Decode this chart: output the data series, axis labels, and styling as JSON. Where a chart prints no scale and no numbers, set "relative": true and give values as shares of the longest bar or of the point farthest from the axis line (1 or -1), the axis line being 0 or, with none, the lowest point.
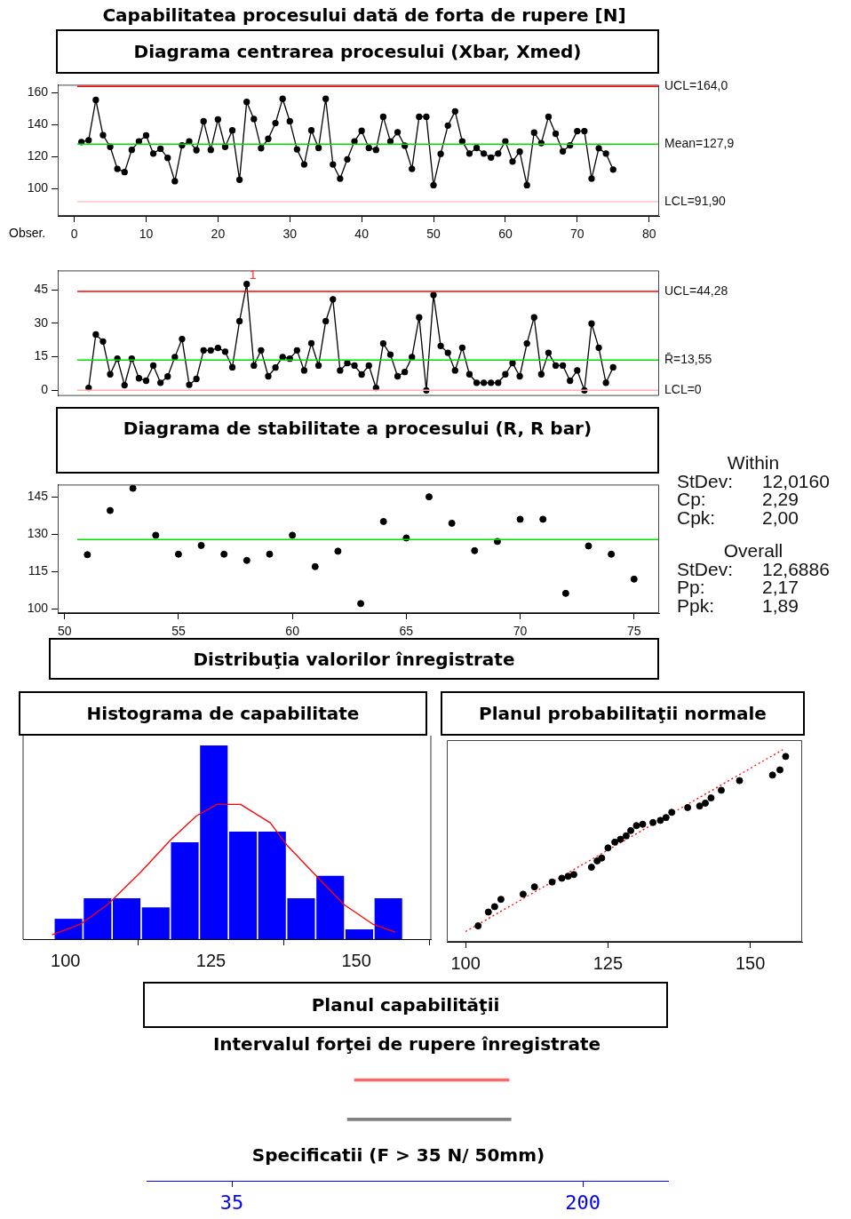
{
  "chart_data": [
    {
      "type": "line",
      "title": "Capabilitatea procesului dată de forta de rupere [N]",
      "subtitle": "Diagrama centrarea procesului (Xbar, Xmed)",
      "xlabel": "Obser.",
      "x": [
        1,
        2,
        3,
        4,
        5,
        6,
        7,
        8,
        9,
        10,
        11,
        12,
        13,
        14,
        15,
        16,
        17,
        18,
        19,
        20,
        21,
        22,
        23,
        24,
        25,
        26,
        27,
        28,
        29,
        30,
        31,
        32,
        33,
        34,
        35,
        36,
        37,
        38,
        39,
        40,
        41,
        42,
        43,
        44,
        45,
        46,
        47,
        48,
        49,
        50,
        51,
        52,
        53,
        54,
        55,
        56,
        57,
        58,
        59,
        60,
        61,
        62,
        63,
        64,
        65,
        66,
        67,
        68,
        69,
        70,
        71,
        72,
        73,
        74,
        75
      ],
      "values": [
        129.2,
        130.3,
        155.5,
        133.5,
        126.2,
        112.4,
        110.4,
        124.3,
        129.6,
        133.3,
        122,
        125,
        119.3,
        104.7,
        127.1,
        129.6,
        124.1,
        142.2,
        124.3,
        143.3,
        126.2,
        136.5,
        105.6,
        154.3,
        143.6,
        125.3,
        131.2,
        141,
        156.2,
        142.2,
        124.6,
        115.2,
        136.5,
        125.5,
        156.2,
        115.2,
        106.3,
        118.4,
        129.6,
        136.2,
        125.5,
        124.3,
        145,
        129.6,
        135.3,
        126.9,
        112.4,
        145,
        145,
        102.2,
        121.8,
        139.5,
        148.4,
        129.6,
        122,
        125.5,
        122,
        119.5,
        122,
        129.6,
        117,
        123.2,
        102.2,
        135.1,
        128.5,
        145,
        134.4,
        123.4,
        127.1,
        136,
        136,
        106.3,
        125.3,
        122,
        112
      ],
      "color": "#000000",
      "marker": "circle",
      "ref_lines": [
        {
          "axis": "y",
          "value": 164,
          "label": "UCL=164,0",
          "color": "#ff0000"
        },
        {
          "axis": "y",
          "value": 127.9,
          "label": "Mean=127,9",
          "color": "#00e000"
        },
        {
          "axis": "y",
          "value": 91.9,
          "label": "LCL=91,90",
          "color": "#ffc0c0"
        }
      ],
      "xlim": [
        -2.3,
        81.4
      ],
      "xticks": [
        0,
        10,
        20,
        30,
        40,
        50,
        60,
        70,
        80
      ],
      "ylim": [
        83,
        165
      ],
      "yticks": [
        100,
        120,
        140,
        160
      ],
      "grid": false,
      "legend": false
    },
    {
      "type": "line",
      "x": [
        2,
        3,
        4,
        5,
        6,
        7,
        8,
        9,
        10,
        11,
        12,
        13,
        14,
        15,
        16,
        17,
        18,
        19,
        20,
        21,
        22,
        23,
        24,
        25,
        26,
        27,
        28,
        29,
        30,
        31,
        32,
        33,
        34,
        35,
        36,
        37,
        38,
        39,
        40,
        41,
        42,
        43,
        44,
        45,
        46,
        47,
        48,
        49,
        50,
        51,
        52,
        53,
        54,
        55,
        56,
        57,
        58,
        59,
        60,
        61,
        62,
        63,
        64,
        65,
        66,
        67,
        68,
        69,
        70,
        71,
        72,
        73,
        74,
        75
      ],
      "values": [
        1.1,
        25,
        21.9,
        7.2,
        14.2,
        2.3,
        14.2,
        5.4,
        4.3,
        11.1,
        3.4,
        6.2,
        14.9,
        23,
        2.5,
        5.1,
        17.9,
        17.9,
        19,
        17.3,
        10.3,
        31,
        47.6,
        11.1,
        17.9,
        6.3,
        10.2,
        14.9,
        14.2,
        17.9,
        8.9,
        21.1,
        11.1,
        31,
        40.8,
        8.9,
        12.2,
        11.1,
        7.1,
        11.1,
        1.1,
        21,
        16,
        6.3,
        8.2,
        14.9,
        32.7,
        0,
        42.7,
        19.9,
        16.8,
        8.9,
        19.1,
        7.2,
        3.4,
        3.4,
        3.4,
        3.4,
        7.2,
        12.2,
        6.3,
        21,
        32.7,
        7.2,
        16.8,
        11.1,
        11.1,
        4.3,
        8.9,
        0,
        29.9,
        19.1,
        3.4,
        10.3
      ],
      "color": "#000000",
      "marker": "circle",
      "ref_lines": [
        {
          "axis": "y",
          "value": 44.28,
          "label": "UCL=44,28",
          "color": "#ff0000"
        },
        {
          "axis": "y",
          "value": 13.55,
          "label": "R̄=13,55",
          "color": "#00e000"
        },
        {
          "axis": "y",
          "value": 0,
          "label": "LCL=0",
          "color": "#ffb0b0"
        }
      ],
      "annotations": [
        {
          "text": "1",
          "x": 24,
          "y": 47.6
        }
      ],
      "xlim": [
        -2.3,
        81.4
      ],
      "ylim": [
        -2.5,
        53.7
      ],
      "yticks": [
        0,
        15,
        30,
        45
      ],
      "tick_labels": "y",
      "grid": false,
      "legend": false
    },
    {
      "type": "scatter",
      "title": "Diagrama de stabilitate a procesului (R, R bar)",
      "x": [
        51,
        52,
        53,
        54,
        55,
        56,
        57,
        58,
        59,
        60,
        61,
        62,
        63,
        64,
        65,
        66,
        67,
        68,
        69,
        70,
        71,
        72,
        73,
        74,
        75
      ],
      "values": [
        121.8,
        139.5,
        148.4,
        129.6,
        122,
        125.5,
        122,
        119.5,
        122,
        129.6,
        117,
        123.2,
        102.2,
        135.1,
        128.5,
        145,
        134.4,
        123.4,
        127.1,
        136,
        136,
        106.3,
        125.3,
        122,
        112
      ],
      "color": "#000000",
      "marker": "circle",
      "ref_lines": [
        {
          "axis": "y",
          "value": 127.9,
          "color": "#00e000"
        }
      ],
      "xlim": [
        49.7,
        76.1
      ],
      "xticks": [
        50,
        55,
        60,
        65,
        70,
        75
      ],
      "ylim": [
        98.4,
        149.9
      ],
      "yticks": [
        100,
        115,
        130,
        145
      ],
      "grid": false,
      "legend": false
    },
    {
      "type": "other",
      "annotations": [
        "Within",
        "StDev:",
        "12,0160",
        "Cp:",
        "2,29",
        "Cpk:",
        "2,00",
        "Overall",
        "StDev:",
        "12,6886",
        "Pp:",
        "2,17",
        "Ppk:",
        "1,89"
      ]
    },
    {
      "type": "other",
      "title": "Distribuţia valorilor înregistrate"
    },
    {
      "type": "histogram",
      "title": "Histograma de capabilitate",
      "relative": true,
      "bins": [
        98,
        103,
        108,
        113,
        118,
        123,
        128,
        133,
        138,
        143,
        148,
        153,
        158
      ],
      "values": [
        0.105,
        0.211,
        0.211,
        0.164,
        0.5,
        1,
        0.555,
        0.555,
        0.211,
        0.327,
        0.051,
        0.211
      ],
      "color": "#0000ff",
      "series": [
        {
          "type": "line",
          "color": "#ff0000",
          "marker": "none",
          "x": [
            97.7,
            102.5,
            107.3,
            112.9,
            118,
            122.5,
            126,
            130.1,
            135.2,
            138.2,
            142.8,
            147.8,
            152.9,
            156.7
          ],
          "values": [
            0.022,
            0.076,
            0.18,
            0.345,
            0.51,
            0.636,
            0.695,
            0.695,
            0.6,
            0.48,
            0.336,
            0.18,
            0.076,
            0.036
          ]
        }
      ],
      "xlim": [
        92.7,
        162.8
      ],
      "xticks": [
        100,
        125,
        150
      ],
      "grid": false,
      "legend": false
    },
    {
      "type": "scatter",
      "title": "Planul probabilitaţii normale",
      "relative": true,
      "marker": "circle",
      "series": [
        {
          "type": "scatter",
          "color": "#000000",
          "x": [
            102.2,
            104,
            105.1,
            106.2,
            110.1,
            112.1,
            115.2,
            116.9,
            118,
            119,
            122.1,
            123.1,
            123.9,
            125,
            126.2,
            127.2,
            128.2,
            129,
            130,
            131.1,
            132.9,
            134.2,
            135.2,
            136.2,
            139,
            141.1,
            142.1,
            143.1,
            144.9,
            148.1,
            153.9,
            155.2,
            156.2
          ],
          "values": [
            0.083,
            0.155,
            0.183,
            0.221,
            0.248,
            0.286,
            0.311,
            0.331,
            0.341,
            0.35,
            0.388,
            0.421,
            0.436,
            0.489,
            0.519,
            0.534,
            0.552,
            0.579,
            0.605,
            0.612,
            0.621,
            0.632,
            0.647,
            0.674,
            0.699,
            0.707,
            0.722,
            0.749,
            0.789,
            0.839,
            0.868,
            0.895,
            0.965
          ]
        },
        {
          "type": "line",
          "color": "#ff0000",
          "line_style": "dotted",
          "marker": "none",
          "x": [
            100,
            155.7
          ],
          "values": [
            0.053,
            1
          ]
        }
      ],
      "xlim": [
        96.7,
        159.1
      ],
      "xticks": [
        100,
        125,
        150
      ],
      "grid": false,
      "legend": false
    },
    {
      "type": "bar",
      "orientation": "horizontal",
      "title": "Planul capabilităţii",
      "subtitle": "Intervalul forţei de rupere înregistrate",
      "xlabel": "Specificatii (F > 35 N/ 50mm)",
      "categories": [
        null,
        null
      ],
      "values": [
        72.7,
        76.9
      ],
      "base": [
        92.6,
        89.3
      ],
      "colors": [
        "#ff6666",
        "#808080"
      ],
      "xlim": [
        -5.1,
        240
      ],
      "xticks": [
        35,
        200
      ],
      "tick_labels": "x",
      "grid": false,
      "legend": false
    }
  ]
}
